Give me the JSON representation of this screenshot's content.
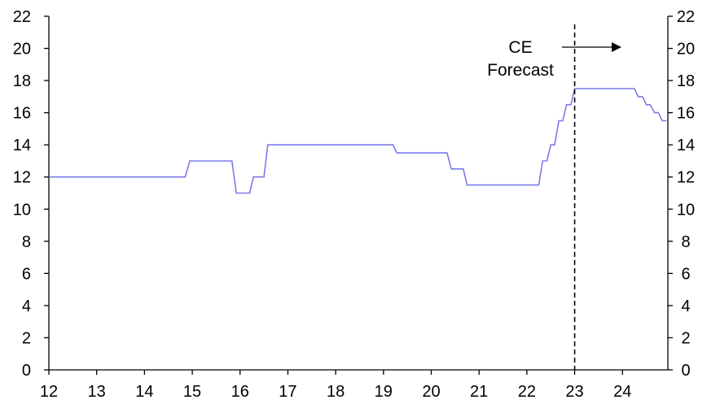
{
  "chart_data": {
    "type": "line",
    "title": "",
    "xlabel": "",
    "ylabel": "",
    "xlim": [
      12,
      24.95
    ],
    "ylim": [
      0,
      22
    ],
    "grid": false,
    "x_ticks": [
      "12",
      "13",
      "14",
      "15",
      "16",
      "17",
      "18",
      "19",
      "20",
      "21",
      "22",
      "23",
      "24"
    ],
    "y_ticks_left": [
      "0",
      "2",
      "4",
      "6",
      "8",
      "10",
      "12",
      "14",
      "16",
      "18",
      "20",
      "22"
    ],
    "y_ticks_right": [
      "0",
      "2",
      "4",
      "6",
      "8",
      "10",
      "12",
      "14",
      "16",
      "18",
      "20",
      "22"
    ],
    "forecast_line_x": 23.0,
    "annotation": {
      "line1": "CE",
      "line2": "Forecast"
    },
    "colors": {
      "series": "#7b7bea",
      "axis": "#000000"
    },
    "series": [
      {
        "values": [
          [
            12.0,
            12
          ],
          [
            14.85,
            12
          ],
          [
            14.95,
            13
          ],
          [
            15.83,
            13
          ],
          [
            15.92,
            11
          ],
          [
            16.2,
            11
          ],
          [
            16.28,
            12
          ],
          [
            16.5,
            12
          ],
          [
            16.58,
            14
          ],
          [
            19.2,
            14
          ],
          [
            19.28,
            13.5
          ],
          [
            20.33,
            13.5
          ],
          [
            20.42,
            12.5
          ],
          [
            20.67,
            12.5
          ],
          [
            20.75,
            11.5
          ],
          [
            22.25,
            11.5
          ],
          [
            22.33,
            13
          ],
          [
            22.42,
            13
          ],
          [
            22.5,
            14
          ],
          [
            22.58,
            14
          ],
          [
            22.67,
            15.5
          ],
          [
            22.75,
            15.5
          ],
          [
            22.83,
            16.5
          ],
          [
            22.92,
            16.5
          ],
          [
            23.0,
            17.5
          ],
          [
            24.25,
            17.5
          ],
          [
            24.33,
            17
          ],
          [
            24.42,
            17
          ],
          [
            24.5,
            16.5
          ],
          [
            24.58,
            16.5
          ],
          [
            24.67,
            16
          ],
          [
            24.75,
            16
          ],
          [
            24.83,
            15.5
          ],
          [
            24.92,
            15.5
          ]
        ]
      }
    ]
  }
}
